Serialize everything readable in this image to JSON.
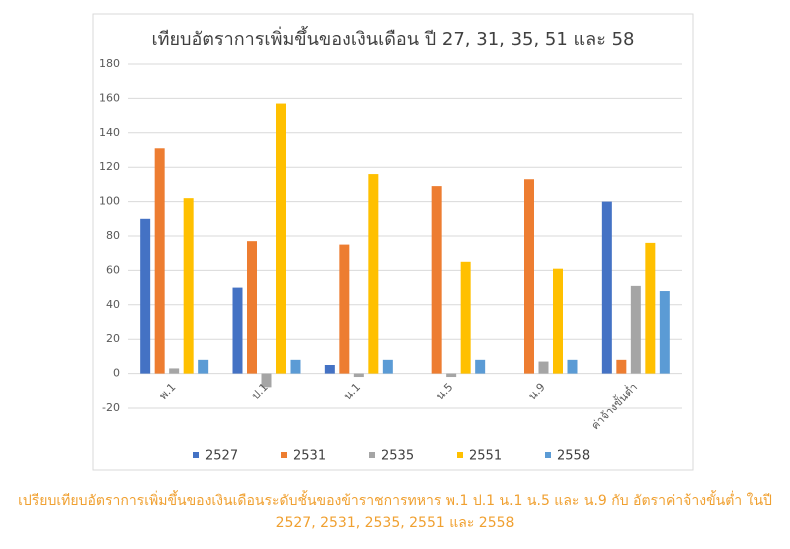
{
  "chart_data": {
    "type": "bar",
    "title": "เทียบอัตราการเพิ่มขึ้นของเงินเดือน ปี 27, 31, 35, 51 และ 58",
    "categories": [
      "พ.1",
      "ป.1",
      "น.1",
      "น.5",
      "น.9",
      "ค่าจ้างขั้นต่ำ"
    ],
    "series": [
      {
        "name": "2527",
        "color": "#4472c4",
        "values": [
          90,
          50,
          5,
          null,
          null,
          100
        ]
      },
      {
        "name": "2531",
        "color": "#ed7d31",
        "values": [
          131,
          77,
          75,
          109,
          113,
          8
        ]
      },
      {
        "name": "2535",
        "color": "#a5a5a5",
        "values": [
          3,
          -8,
          -2,
          -2,
          7,
          51
        ]
      },
      {
        "name": "2551",
        "color": "#ffc000",
        "values": [
          102,
          157,
          116,
          65,
          61,
          76
        ]
      },
      {
        "name": "2558",
        "color": "#5b9bd5",
        "values": [
          8,
          8,
          8,
          8,
          8,
          48
        ]
      }
    ],
    "ylim": [
      -20,
      180
    ],
    "yticks": [
      -20,
      0,
      20,
      40,
      60,
      80,
      100,
      120,
      140,
      160,
      180
    ],
    "grid": true,
    "legend": "bottom"
  },
  "caption": "เปรียบเทียบอัตราการเพิ่มขึ้นของเงินเดือนระดับชั้นของข้าราชการทหาร พ.1 ป.1 น.1 น.5 และ น.9 กับ อัตราค่าจ้างขั้นต่ำ ในปี 2527, 2531, 2535, 2551 และ 2558"
}
